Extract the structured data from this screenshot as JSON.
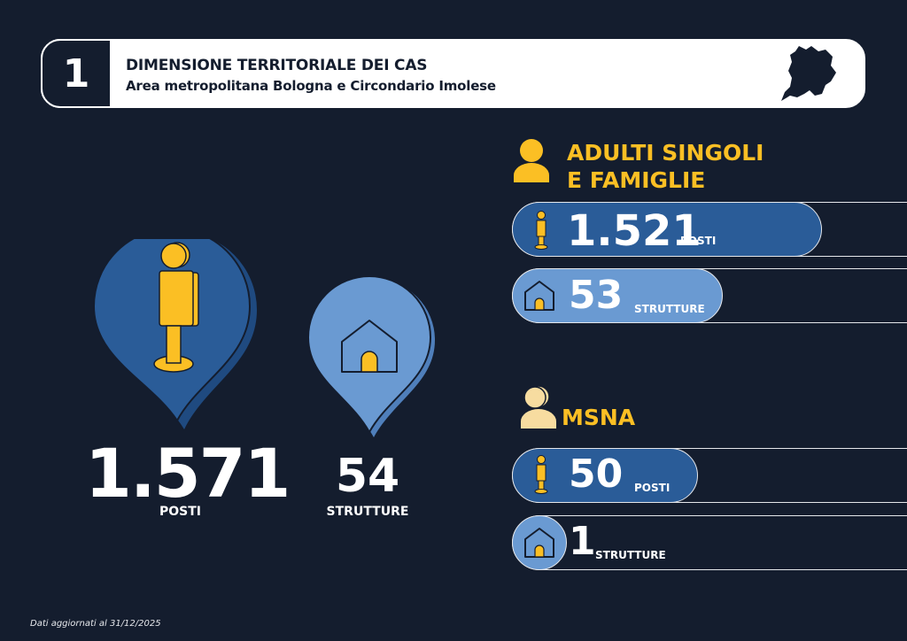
{
  "header": {
    "number": "1",
    "title": "DIMENSIONE TERRITORIALE DEI CAS",
    "subtitle": "Area metropolitana Bologna e Circondario Imolese",
    "map_icon": "map-silhouette-icon"
  },
  "totals": {
    "posti_value": "1.571",
    "posti_label": "POSTI",
    "strutture_value": "54",
    "strutture_label": "STRUTTURE"
  },
  "adulti": {
    "title_line1": "ADULTI SINGOLI",
    "title_line2": "E FAMIGLIE",
    "posti_value": "1.521",
    "posti_label": "POSTI",
    "strutture_value": "53",
    "strutture_label": "STRUTTURE"
  },
  "msna": {
    "title": "MSNA",
    "posti_value": "50",
    "posti_label": "POSTI",
    "strutture_value": "1",
    "strutture_label": "STRUTTURE"
  },
  "footer": {
    "note": "Dati aggiornati al 31/12/2025"
  },
  "colors": {
    "background": "#141d2e",
    "accent_yellow": "#fbbf24",
    "dark_blue": "#2a5c98",
    "light_blue": "#6a9ad2"
  }
}
